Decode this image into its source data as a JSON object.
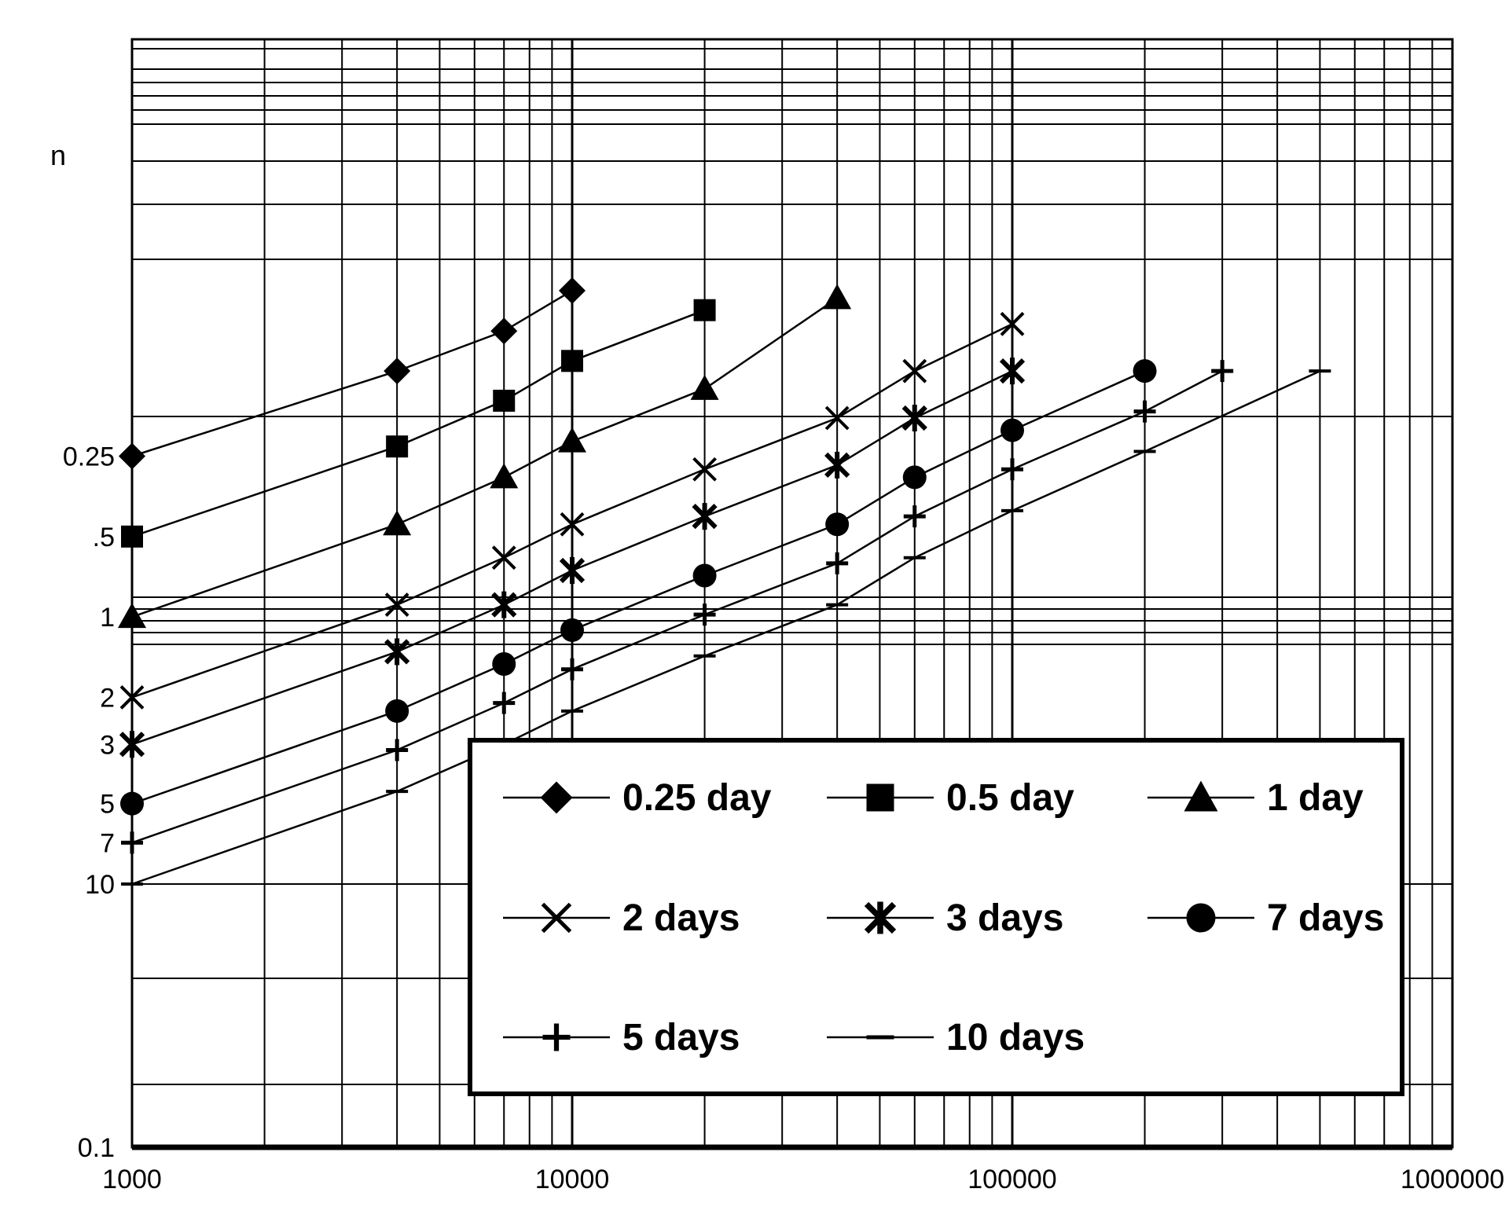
{
  "chart_data": {
    "type": "line",
    "title": "",
    "xlabel": "",
    "ylabel": "n",
    "x_scale": "log",
    "xlim": [
      1000,
      1000000
    ],
    "x_tick_labels": [
      {
        "value": 1000,
        "label": "1000"
      },
      {
        "value": 10000,
        "label": "10000"
      },
      {
        "value": 100000,
        "label": "100000"
      },
      {
        "value": 1000000,
        "label": "1000000"
      }
    ],
    "y_tick_labels": [
      {
        "value": 0.25,
        "label": "0.25"
      },
      {
        "value": 0.5,
        "label": ".5"
      },
      {
        "value": 1,
        "label": "1"
      },
      {
        "value": 2,
        "label": "2"
      },
      {
        "value": 3,
        "label": "3"
      },
      {
        "value": 5,
        "label": "5"
      },
      {
        "value": 7,
        "label": "7"
      },
      {
        "value": 10,
        "label": "10"
      },
      {
        "value": 0.1,
        "label": "0.1"
      }
    ],
    "grid": true,
    "legend_position": "lower-right",
    "series": [
      {
        "name": "0.25 day",
        "marker": "diamond",
        "points": [
          [
            1000,
            0.25
          ],
          [
            4000,
            0.12
          ],
          [
            7000,
            0.085
          ],
          [
            10000,
            0.06
          ]
        ]
      },
      {
        "name": "0.5 day",
        "marker": "square",
        "points": [
          [
            1000,
            0.5
          ],
          [
            4000,
            0.23
          ],
          [
            7000,
            0.155
          ],
          [
            10000,
            0.11
          ],
          [
            20000,
            0.071
          ]
        ]
      },
      {
        "name": "1 day",
        "marker": "triangle",
        "points": [
          [
            1000,
            1
          ],
          [
            4000,
            0.45
          ],
          [
            7000,
            0.3
          ],
          [
            10000,
            0.22
          ],
          [
            20000,
            0.14
          ],
          [
            40000,
            0.064
          ]
        ]
      },
      {
        "name": "2 days",
        "marker": "x",
        "points": [
          [
            1000,
            2
          ],
          [
            4000,
            0.9
          ],
          [
            7000,
            0.6
          ],
          [
            10000,
            0.45
          ],
          [
            20000,
            0.28
          ],
          [
            40000,
            0.18
          ],
          [
            60000,
            0.12
          ],
          [
            100000,
            0.08
          ]
        ]
      },
      {
        "name": "3 days",
        "marker": "asterisk",
        "points": [
          [
            1000,
            3
          ],
          [
            4000,
            1.35
          ],
          [
            7000,
            0.9
          ],
          [
            10000,
            0.67
          ],
          [
            20000,
            0.42
          ],
          [
            40000,
            0.27
          ],
          [
            60000,
            0.18
          ],
          [
            100000,
            0.12
          ]
        ]
      },
      {
        "name": "7 days",
        "marker": "circle",
        "points": [
          [
            1000,
            5
          ],
          [
            4000,
            2.25
          ],
          [
            7000,
            1.5
          ],
          [
            10000,
            1.12
          ],
          [
            20000,
            0.7
          ],
          [
            40000,
            0.45
          ],
          [
            60000,
            0.3
          ],
          [
            100000,
            0.2
          ],
          [
            200000,
            0.12
          ]
        ]
      },
      {
        "name": "5 days",
        "marker": "plus",
        "points": [
          [
            1000,
            7
          ],
          [
            4000,
            3.15
          ],
          [
            7000,
            2.1
          ],
          [
            10000,
            1.57
          ],
          [
            20000,
            0.98
          ],
          [
            40000,
            0.63
          ],
          [
            60000,
            0.42
          ],
          [
            100000,
            0.28
          ],
          [
            200000,
            0.17
          ],
          [
            300000,
            0.12
          ]
        ]
      },
      {
        "name": "10 days",
        "marker": "dash",
        "points": [
          [
            1000,
            10
          ],
          [
            4000,
            4.5
          ],
          [
            7000,
            3
          ],
          [
            10000,
            2.25
          ],
          [
            20000,
            1.4
          ],
          [
            40000,
            0.9
          ],
          [
            60000,
            0.6
          ],
          [
            100000,
            0.4
          ],
          [
            200000,
            0.24
          ],
          [
            500000,
            0.12
          ]
        ]
      }
    ]
  }
}
